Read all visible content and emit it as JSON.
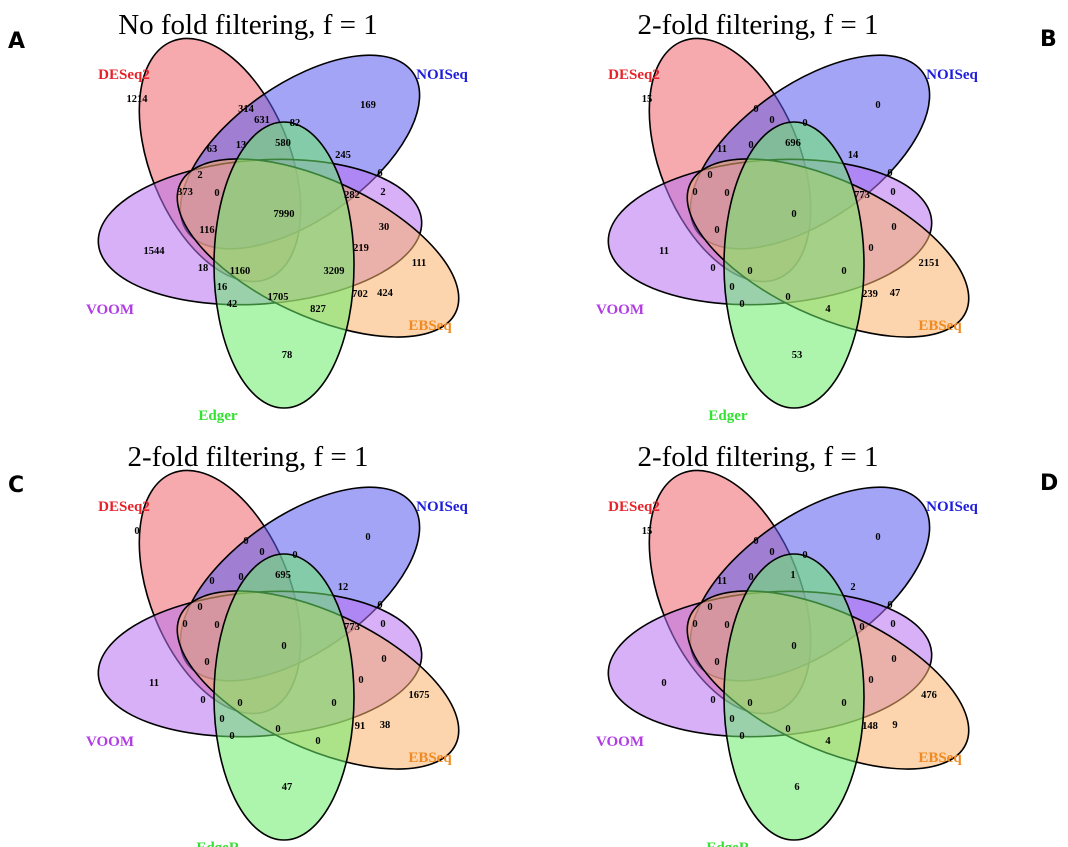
{
  "colors": {
    "DESeq2": "#f0646b",
    "NOISeq": "#5a5af0",
    "VOOM": "#b770f2",
    "EBSeq": "#f9b06a",
    "Edger": "#6aec6a",
    "label_DESeq2": "#e8222a",
    "label_NOISeq": "#1d1ddd",
    "label_VOOM": "#b13de6",
    "label_EBSeq": "#f08a20",
    "label_Edger": "#33e033"
  },
  "panels": [
    {
      "letter": "A",
      "title": "No fold filtering, f =  1",
      "sets": {
        "DESeq2": "DESeq2",
        "NOISeq": "NOISeq",
        "VOOM": "VOOM",
        "EBSeq": "EBSeq",
        "Edger": "Edger"
      },
      "regions": {
        "D": "1214",
        "DN1": "314",
        "DN2": "631",
        "N1": "82",
        "N": "169",
        "DE": "63",
        "DNE": "13",
        "DNEV": "580",
        "NV": "245",
        "NVa": "6",
        "DV": "2",
        "DVb": "0",
        "DVc": "373",
        "NVb": "2",
        "NEV": "282",
        "ALL": "7990",
        "EV": "30",
        "V": "1544",
        "DVE": "116",
        "NVG": "219",
        "E": "111",
        "VG": "18",
        "VGN": "1160",
        "EGN": "3209",
        "VG2": "16",
        "VG3": "42",
        "GN": "1705",
        "EG": "702",
        "EG2": "424",
        "G2": "827",
        "G": "78"
      }
    },
    {
      "letter": "B",
      "title": "2-fold filtering, f =  1",
      "sets": {
        "DESeq2": "DESeq2",
        "NOISeq": "NOISeq",
        "VOOM": "VOOM",
        "EBSeq": "EBSeq",
        "Edger": "Edger"
      },
      "regions": {
        "D": "15",
        "DN1": "0",
        "DN2": "0",
        "N1": "0",
        "N": "0",
        "DE": "11",
        "DNE": "0",
        "DNEV": "696",
        "NV": "14",
        "NVa": "0",
        "DV": "0",
        "DVb": "0",
        "DVc": "0",
        "NVb": "0",
        "NEV": "773",
        "ALL": "0",
        "EV": "0",
        "V": "11",
        "DVE": "0",
        "NVG": "0",
        "E": "2151",
        "VG": "0",
        "VGN": "0",
        "EGN": "0",
        "VG2": "0",
        "VG3": "0",
        "GN": "0",
        "EG": "239",
        "EG2": "47",
        "G2": "4",
        "G": "53"
      }
    },
    {
      "letter": "C",
      "title": "2-fold filtering, f =  1",
      "sets": {
        "DESeq2": "DESeq2",
        "NOISeq": "NOISeq",
        "VOOM": "VOOM",
        "EBSeq": "EBSeq",
        "Edger": "EdgeR"
      },
      "regions": {
        "D": "0",
        "DN1": "0",
        "DN2": "0",
        "N1": "0",
        "N": "0",
        "DE": "0",
        "DNE": "0",
        "DNEV": "695",
        "NV": "12",
        "NVa": "0",
        "DV": "0",
        "DVb": "0",
        "DVc": "0",
        "NVb": "0",
        "NEV": "773",
        "ALL": "0",
        "EV": "0",
        "V": "11",
        "DVE": "0",
        "NVG": "0",
        "E": "1675",
        "VG": "0",
        "VGN": "0",
        "EGN": "0",
        "VG2": "0",
        "VG3": "0",
        "GN": "0",
        "EG": "91",
        "EG2": "38",
        "G2": "0",
        "G": "47"
      }
    },
    {
      "letter": "D",
      "title": "2-fold filtering, f =  1",
      "sets": {
        "DESeq2": "DESeq2",
        "NOISeq": "NOISeq",
        "VOOM": "VOOM",
        "EBSeq": "EBSeq",
        "Edger": "EdgeR"
      },
      "regions": {
        "D": "15",
        "DN1": "0",
        "DN2": "0",
        "N1": "0",
        "N": "0",
        "DE": "11",
        "DNE": "0",
        "DNEV": "1",
        "NV": "2",
        "NVa": "0",
        "DV": "0",
        "DVb": "0",
        "DVc": "0",
        "NVb": "0",
        "NEV": "0",
        "ALL": "0",
        "EV": "0",
        "V": "0",
        "DVE": "0",
        "NVG": "0",
        "E": "476",
        "VG": "0",
        "VGN": "0",
        "EGN": "0",
        "VG2": "0",
        "VG3": "0",
        "GN": "0",
        "EG": "148",
        "EG2": "9",
        "G2": "4",
        "G": "6"
      }
    }
  ]
}
